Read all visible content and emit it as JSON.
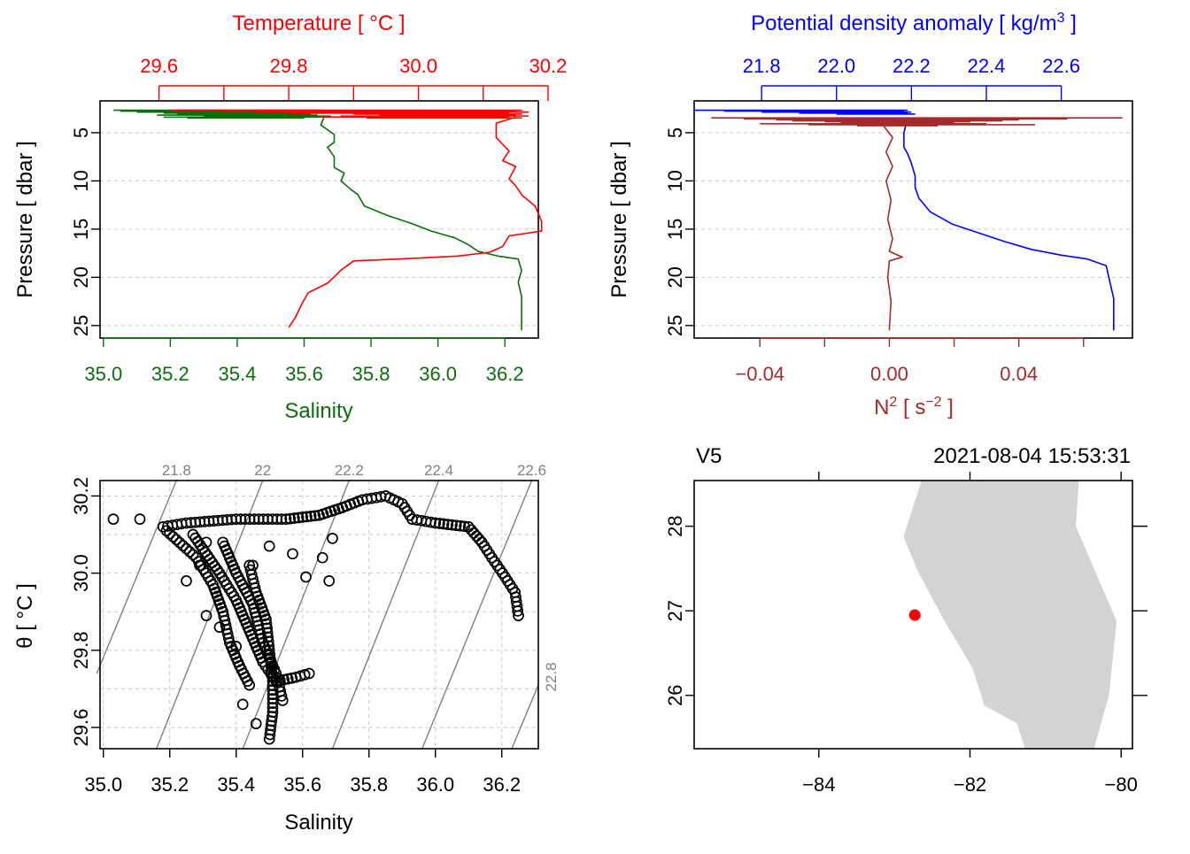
{
  "colors": {
    "salinity": "#0a6e0a",
    "temperature": "#ff0000",
    "density": "#0000ff",
    "n2": "#a52a2a",
    "isopycnal": "#808080",
    "land": "#d3d3d3",
    "station": "#ff0000"
  },
  "chart_data": [
    {
      "id": "profile_ts",
      "type": "line",
      "ylabel": "Pressure [ dbar ]",
      "ylim": [
        26.3,
        1.7
      ],
      "yticks": [
        5,
        10,
        15,
        20,
        25
      ],
      "bottom_axis": {
        "label": "Salinity",
        "lim": [
          34.99,
          36.3
        ],
        "ticks": [
          35.0,
          35.2,
          35.4,
          35.6,
          35.8,
          36.0,
          36.2
        ],
        "tick_labels": [
          "35.0",
          "35.2",
          "35.4",
          "35.6",
          "35.8",
          "36.0",
          "36.2"
        ]
      },
      "top_axis": {
        "label": "Temperature [ °C ]",
        "lim": [
          29.509,
          30.185
        ],
        "ticks": [
          29.6,
          29.7,
          29.8,
          29.9,
          30.0,
          30.1,
          30.2
        ],
        "tick_labels": [
          "29.6",
          "",
          "29.8",
          "",
          "30.0",
          "",
          "30.2"
        ]
      },
      "series": [
        {
          "name": "Salinity",
          "color_key": "salinity",
          "points": [
            [
              35.18,
              3.4
            ],
            [
              35.66,
              3.3
            ],
            [
              35.65,
              4.2
            ],
            [
              35.69,
              5.2
            ],
            [
              35.69,
              6.0
            ],
            [
              35.67,
              6.5
            ],
            [
              35.69,
              7.5
            ],
            [
              35.69,
              8.6
            ],
            [
              35.72,
              9.2
            ],
            [
              35.71,
              10.0
            ],
            [
              35.74,
              10.9
            ],
            [
              35.76,
              11.4
            ],
            [
              35.78,
              12.6
            ],
            [
              35.85,
              13.6
            ],
            [
              35.92,
              14.4
            ],
            [
              35.98,
              15.2
            ],
            [
              36.05,
              15.9
            ],
            [
              36.09,
              16.6
            ],
            [
              36.12,
              17.3
            ],
            [
              36.18,
              17.8
            ],
            [
              36.24,
              18.1
            ],
            [
              36.25,
              19.3
            ],
            [
              36.24,
              20.5
            ],
            [
              36.25,
              22.0
            ],
            [
              36.25,
              23.5
            ],
            [
              36.25,
              25.5
            ]
          ]
        },
        {
          "name": "Temperature",
          "color_key": "temperature",
          "points": [
            [
              30.15,
              3.4
            ],
            [
              30.12,
              4.0
            ],
            [
              30.12,
              5.5
            ],
            [
              30.13,
              6.2
            ],
            [
              30.14,
              6.9
            ],
            [
              30.13,
              7.9
            ],
            [
              30.15,
              8.5
            ],
            [
              30.14,
              9.8
            ],
            [
              30.15,
              10.5
            ],
            [
              30.16,
              11.5
            ],
            [
              30.18,
              12.6
            ],
            [
              30.19,
              14.2
            ],
            [
              30.19,
              15.2
            ],
            [
              30.14,
              15.7
            ],
            [
              30.13,
              16.8
            ],
            [
              30.11,
              17.4
            ],
            [
              30.06,
              17.8
            ],
            [
              29.97,
              18.1
            ],
            [
              29.9,
              18.3
            ],
            [
              29.88,
              19.3
            ],
            [
              29.86,
              20.6
            ],
            [
              29.83,
              21.6
            ],
            [
              29.82,
              22.8
            ],
            [
              29.81,
              24.2
            ],
            [
              29.8,
              25.2
            ]
          ]
        }
      ]
    },
    {
      "id": "profile_density",
      "type": "line",
      "ylabel": "Pressure [ dbar ]",
      "ylim": [
        26.3,
        1.7
      ],
      "yticks": [
        5,
        10,
        15,
        20,
        25
      ],
      "bottom_axis": {
        "label": "N2 [ s-2 ]",
        "lim": [
          -0.0603,
          0.0751
        ],
        "ticks": [
          -0.04,
          -0.02,
          0.0,
          0.02,
          0.04,
          0.06
        ],
        "tick_labels": [
          "-0.04",
          "",
          "0.00",
          "",
          "0.04",
          ""
        ]
      },
      "top_axis": {
        "label": "Potential density anomaly [ kg/m3 ]",
        "lim": [
          21.62,
          22.79
        ],
        "ticks": [
          21.8,
          22.0,
          22.2,
          22.4,
          22.6
        ],
        "tick_labels": [
          "21.8",
          "22.0",
          "22.2",
          "22.4",
          "22.6"
        ]
      },
      "series": [
        {
          "name": "Potential density anomaly",
          "color_key": "density",
          "points": [
            [
              22.19,
              3.4
            ],
            [
              22.18,
              5.0
            ],
            [
              22.18,
              6.5
            ],
            [
              22.19,
              7.2
            ],
            [
              22.2,
              8.2
            ],
            [
              22.21,
              9.5
            ],
            [
              22.21,
              10.7
            ],
            [
              22.22,
              11.8
            ],
            [
              22.25,
              13.2
            ],
            [
              22.31,
              14.5
            ],
            [
              22.38,
              15.4
            ],
            [
              22.45,
              16.3
            ],
            [
              22.52,
              17.1
            ],
            [
              22.6,
              17.7
            ],
            [
              22.67,
              18.1
            ],
            [
              22.72,
              18.8
            ],
            [
              22.73,
              20.5
            ],
            [
              22.74,
              22.2
            ],
            [
              22.74,
              25.5
            ]
          ]
        },
        {
          "name": "N2",
          "color_key": "n2",
          "points": [
            [
              -0.002,
              4.2
            ],
            [
              0.001,
              5.5
            ],
            [
              -0.001,
              7.0
            ],
            [
              0.001,
              8.5
            ],
            [
              -0.001,
              10.0
            ],
            [
              0.0005,
              12.0
            ],
            [
              -0.0005,
              14.0
            ],
            [
              0.001,
              16.0
            ],
            [
              0.0,
              17.3
            ],
            [
              0.004,
              17.9
            ],
            [
              0.0,
              18.3
            ],
            [
              -0.0005,
              20.0
            ],
            [
              0.0005,
              22.5
            ],
            [
              0.0,
              25.5
            ]
          ]
        }
      ]
    },
    {
      "id": "ts_diagram",
      "type": "scatter",
      "xlabel": "Salinity",
      "ylabel": "θ [ °C ]",
      "xlim": [
        34.99,
        36.31
      ],
      "ylim": [
        29.545,
        30.24
      ],
      "xticks": [
        35.0,
        35.2,
        35.4,
        35.6,
        35.8,
        36.0,
        36.2
      ],
      "yticks": [
        29.6,
        29.8,
        30.0,
        30.2
      ],
      "ytick_labels": [
        "29.6",
        "29.8",
        "30.0",
        "30.2"
      ],
      "isopycnals": [
        {
          "label": "21.8",
          "p1": [
            34.98,
            29.74
          ],
          "p2": [
            35.22,
            30.24
          ]
        },
        {
          "label": "22",
          "p1": [
            35.16,
            29.545
          ],
          "p2": [
            35.48,
            30.24
          ]
        },
        {
          "label": "22.2",
          "p1": [
            35.42,
            29.545
          ],
          "p2": [
            35.74,
            30.24
          ]
        },
        {
          "label": "22.4",
          "p1": [
            35.69,
            29.545
          ],
          "p2": [
            36.01,
            30.24
          ]
        },
        {
          "label": "22.6",
          "p1": [
            35.96,
            29.545
          ],
          "p2": [
            36.29,
            30.24
          ]
        },
        {
          "label": "22.8",
          "p1": [
            36.23,
            29.545
          ],
          "p2": [
            36.31,
            29.71
          ]
        }
      ],
      "scatter_groups": [
        {
          "kind": "line",
          "color": "#000",
          "points": [
            [
              35.18,
              30.12
            ],
            [
              35.25,
              30.13
            ],
            [
              35.4,
              30.14
            ],
            [
              35.55,
              30.14
            ],
            [
              35.65,
              30.15
            ],
            [
              35.72,
              30.17
            ],
            [
              35.78,
              30.19
            ],
            [
              35.85,
              30.2
            ],
            [
              35.9,
              30.18
            ],
            [
              35.93,
              30.14
            ],
            [
              36.0,
              30.13
            ],
            [
              36.1,
              30.12
            ],
            [
              36.14,
              30.08
            ],
            [
              36.17,
              30.04
            ],
            [
              36.21,
              29.99
            ],
            [
              36.24,
              29.95
            ],
            [
              36.25,
              29.89
            ]
          ]
        },
        {
          "kind": "line",
          "color": "#000",
          "points": [
            [
              35.19,
              30.11
            ],
            [
              35.28,
              30.04
            ],
            [
              35.33,
              29.97
            ],
            [
              35.36,
              29.9
            ],
            [
              35.38,
              29.82
            ],
            [
              35.41,
              29.76
            ],
            [
              35.44,
              29.71
            ]
          ]
        },
        {
          "kind": "line",
          "color": "#000",
          "points": [
            [
              35.27,
              30.1
            ],
            [
              35.35,
              30.0
            ],
            [
              35.4,
              29.93
            ],
            [
              35.44,
              29.85
            ],
            [
              35.48,
              29.77
            ],
            [
              35.52,
              29.72
            ],
            [
              35.58,
              29.73
            ],
            [
              35.62,
              29.74
            ]
          ]
        },
        {
          "kind": "line",
          "color": "#000",
          "points": [
            [
              35.36,
              30.08
            ],
            [
              35.4,
              30.0
            ],
            [
              35.45,
              29.92
            ],
            [
              35.48,
              29.82
            ],
            [
              35.52,
              29.74
            ],
            [
              35.54,
              29.67
            ]
          ]
        },
        {
          "kind": "line",
          "color": "#000",
          "points": [
            [
              35.44,
              30.02
            ],
            [
              35.46,
              29.95
            ],
            [
              35.49,
              29.88
            ],
            [
              35.5,
              29.8
            ],
            [
              35.51,
              29.72
            ],
            [
              35.51,
              29.64
            ],
            [
              35.5,
              29.57
            ]
          ]
        },
        {
          "kind": "points",
          "color": "#000",
          "points": [
            [
              35.03,
              30.14
            ],
            [
              35.11,
              30.14
            ],
            [
              35.42,
              29.66
            ],
            [
              35.46,
              29.61
            ],
            [
              35.61,
              29.99
            ],
            [
              35.66,
              30.04
            ],
            [
              35.68,
              29.98
            ],
            [
              35.69,
              30.09
            ],
            [
              35.5,
              30.07
            ],
            [
              35.45,
              30.02
            ],
            [
              35.57,
              30.05
            ],
            [
              35.35,
              29.86
            ],
            [
              35.31,
              29.89
            ],
            [
              35.4,
              29.81
            ],
            [
              35.29,
              30.02
            ],
            [
              35.25,
              29.98
            ],
            [
              35.31,
              30.08
            ]
          ]
        }
      ]
    },
    {
      "id": "map",
      "type": "map",
      "title_left": "V5",
      "title_right": "2021-08-04 15:53:31",
      "xlim": [
        -85.65,
        -79.85
      ],
      "ylim": [
        25.37,
        28.54
      ],
      "xticks": [
        -84,
        -82,
        -80
      ],
      "yticks": [
        26,
        27,
        28
      ],
      "land": [
        [
          -82.64,
          28.54
        ],
        [
          -82.88,
          27.88
        ],
        [
          -82.69,
          27.47
        ],
        [
          -82.35,
          26.9
        ],
        [
          -81.97,
          26.33
        ],
        [
          -81.81,
          25.88
        ],
        [
          -81.38,
          25.67
        ],
        [
          -81.27,
          25.37
        ],
        [
          -80.36,
          25.37
        ],
        [
          -80.16,
          26.0
        ],
        [
          -80.06,
          26.88
        ],
        [
          -80.6,
          28.0
        ],
        [
          -80.56,
          28.54
        ]
      ],
      "station": {
        "lon": -82.73,
        "lat": 26.95
      }
    }
  ]
}
